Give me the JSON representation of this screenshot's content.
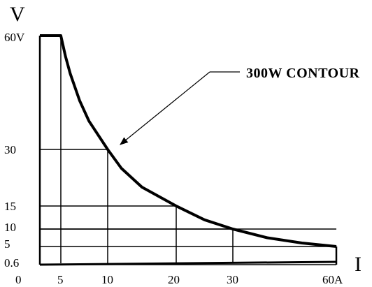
{
  "chart_data": {
    "type": "line",
    "xlabel": "I",
    "ylabel": "V",
    "xlim": [
      0,
      60
    ],
    "ylim": [
      0,
      60
    ],
    "x_ticks": [
      "0",
      "5",
      "10",
      "20",
      "30",
      "60A"
    ],
    "y_ticks": [
      "0.6",
      "5",
      "10",
      "15",
      "30",
      "60V"
    ],
    "series": [
      {
        "values_description_free": true,
        "points": [
          [
            0.6,
            60
          ],
          [
            5,
            60
          ],
          [
            5.5,
            54.5
          ],
          [
            6,
            50
          ],
          [
            7,
            42.9
          ],
          [
            8,
            37.5
          ],
          [
            10,
            30
          ],
          [
            12,
            25
          ],
          [
            15,
            20
          ],
          [
            20,
            15
          ],
          [
            25,
            12
          ],
          [
            30,
            10
          ],
          [
            40,
            7.5
          ],
          [
            50,
            6
          ],
          [
            60,
            5
          ]
        ]
      }
    ],
    "operating_points": [
      {
        "current": 10,
        "voltage": 30
      },
      {
        "current": 20,
        "voltage": 15
      },
      {
        "current": 30,
        "voltage": 10
      }
    ],
    "baseline": [
      [
        0.6,
        0
      ],
      [
        60,
        0.6
      ]
    ],
    "annotation": "300W CONTOUR",
    "grid": false,
    "legend": "none"
  }
}
